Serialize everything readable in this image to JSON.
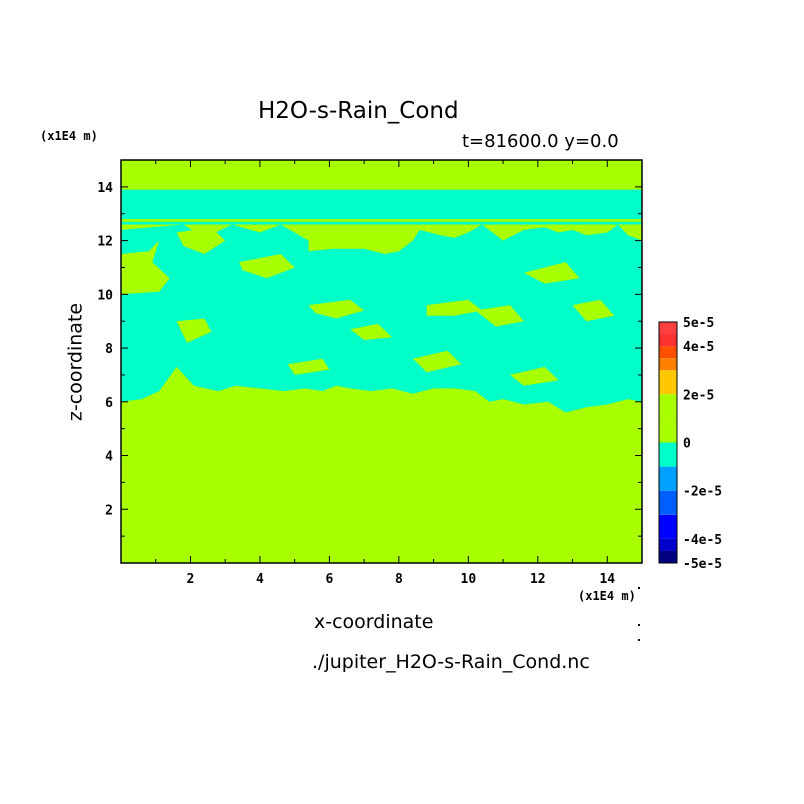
{
  "chart_data": {
    "type": "heatmap",
    "title": "H2O-s-Rain_Cond",
    "subtitle": "t=81600.0 y=0.0",
    "xlabel": "x-coordinate",
    "ylabel": "z-coordinate",
    "x_unit": "(x1E4 m)",
    "y_unit": "(x1E4 m)",
    "xlim": [
      0,
      15
    ],
    "ylim": [
      0,
      15
    ],
    "x_ticks": [
      "2",
      "4",
      "6",
      "8",
      "10",
      "12",
      "14"
    ],
    "y_ticks": [
      "2",
      "4",
      "6",
      "8",
      "10",
      "12",
      "14"
    ],
    "colorbar": {
      "labels": [
        "5e-5",
        "4e-5",
        "2e-5",
        "0",
        "-2e-5",
        "-4e-5",
        "-5e-5"
      ],
      "levels": [
        {
          "from": -5e-05,
          "to": -4.5e-05,
          "color": "#000080"
        },
        {
          "from": -4.5e-05,
          "to": -4e-05,
          "color": "#0000c8"
        },
        {
          "from": -4e-05,
          "to": -3e-05,
          "color": "#0000ff"
        },
        {
          "from": -3e-05,
          "to": -2e-05,
          "color": "#0060ff"
        },
        {
          "from": -2e-05,
          "to": -1e-05,
          "color": "#00a0ff"
        },
        {
          "from": -1e-05,
          "to": 0,
          "color": "#00ffc8"
        },
        {
          "from": 0,
          "to": 1e-05,
          "color": "#a8ff00"
        },
        {
          "from": 1e-05,
          "to": 2e-05,
          "color": "#a8ff00"
        },
        {
          "from": 2e-05,
          "to": 3e-05,
          "color": "#ffc800"
        },
        {
          "from": 3e-05,
          "to": 3.5e-05,
          "color": "#ff8000"
        },
        {
          "from": 3.5e-05,
          "to": 4e-05,
          "color": "#ff5000"
        },
        {
          "from": 4e-05,
          "to": 4.5e-05,
          "color": "#ff3030"
        },
        {
          "from": 4.5e-05,
          "to": 5e-05,
          "color": "#ff4040"
        }
      ]
    },
    "background_color": "#a8ff00",
    "region_color": "#00ffc8",
    "regions": [
      {
        "x": [
          0,
          15,
          15,
          0
        ],
        "y": [
          13.9,
          13.9,
          12.8,
          12.8
        ]
      },
      {
        "x": [
          0,
          15,
          15,
          0
        ],
        "y": [
          12.7,
          12.7,
          12.6,
          12.6
        ]
      },
      {
        "x": [
          0,
          1.8,
          2.4,
          3.2,
          4.0,
          4.6,
          5.4,
          5.4,
          6.1,
          7.0,
          7.6,
          8.0,
          8.4,
          8.6,
          9.2,
          9.6,
          10.0,
          10.4,
          11.0,
          11.6,
          12.2,
          12.6,
          13.0,
          13.4,
          14.0,
          14.3,
          14.6,
          15,
          15,
          14.6,
          14.0,
          13.4,
          12.8,
          12.3,
          11.6,
          11.0,
          10.6,
          10.2,
          9.6,
          9.0,
          8.4,
          7.8,
          7.2,
          6.6,
          6.2,
          5.8,
          5.3,
          4.7,
          4.0,
          3.3,
          2.8,
          2.1,
          1.6,
          1.1,
          0.6,
          0
        ],
        "y": [
          12.4,
          12.6,
          12.1,
          12.6,
          12.3,
          12.6,
          12.0,
          11.6,
          11.7,
          11.7,
          11.5,
          11.6,
          12.0,
          12.4,
          12.2,
          12.1,
          12.3,
          12.6,
          12.0,
          12.4,
          12.5,
          12.3,
          12.4,
          12.2,
          12.3,
          12.6,
          12.2,
          12.0,
          6.0,
          6.1,
          5.9,
          5.8,
          5.6,
          6.0,
          5.9,
          6.1,
          6.0,
          6.4,
          6.5,
          6.5,
          6.3,
          6.5,
          6.4,
          6.5,
          6.6,
          6.4,
          6.5,
          6.4,
          6.5,
          6.6,
          6.4,
          6.6,
          7.3,
          6.4,
          6.1,
          6.0
        ]
      }
    ],
    "holes": [
      {
        "x": [
          0,
          0.8,
          1.1,
          0.9,
          1.4,
          1.1,
          0
        ],
        "y": [
          11.5,
          11.6,
          12.0,
          11.2,
          10.6,
          10.1,
          10.0
        ]
      },
      {
        "x": [
          1.6,
          2.6,
          3.0,
          2.4,
          1.8
        ],
        "y": [
          12.3,
          12.5,
          12.0,
          11.5,
          11.8
        ]
      },
      {
        "x": [
          3.4,
          4.6,
          5.0,
          4.2,
          3.5
        ],
        "y": [
          11.2,
          11.5,
          11.0,
          10.6,
          10.9
        ]
      },
      {
        "x": [
          5.4,
          6.6,
          7.0,
          6.2,
          5.6
        ],
        "y": [
          9.6,
          9.8,
          9.4,
          9.1,
          9.3
        ]
      },
      {
        "x": [
          6.6,
          7.4,
          7.8,
          7.0
        ],
        "y": [
          8.7,
          8.9,
          8.4,
          8.3
        ]
      },
      {
        "x": [
          8.8,
          10.0,
          10.4,
          9.6,
          8.8
        ],
        "y": [
          9.6,
          9.8,
          9.4,
          9.2,
          9.2
        ]
      },
      {
        "x": [
          10.2,
          11.2,
          11.6,
          10.8
        ],
        "y": [
          9.4,
          9.6,
          9.0,
          8.8
        ]
      },
      {
        "x": [
          11.6,
          12.8,
          13.2,
          12.2
        ],
        "y": [
          10.8,
          11.2,
          10.6,
          10.4
        ]
      },
      {
        "x": [
          13.0,
          13.8,
          14.2,
          13.4
        ],
        "y": [
          9.6,
          9.8,
          9.2,
          9.0
        ]
      },
      {
        "x": [
          1.6,
          2.4,
          2.6,
          1.9
        ],
        "y": [
          9.0,
          9.1,
          8.6,
          8.2
        ]
      },
      {
        "x": [
          4.8,
          5.8,
          6.0,
          5.0
        ],
        "y": [
          7.4,
          7.6,
          7.2,
          7.0
        ]
      },
      {
        "x": [
          8.4,
          9.4,
          9.8,
          8.8
        ],
        "y": [
          7.6,
          7.9,
          7.4,
          7.1
        ]
      },
      {
        "x": [
          11.2,
          12.2,
          12.6,
          11.6
        ],
        "y": [
          7.0,
          7.3,
          6.8,
          6.6
        ]
      }
    ]
  }
}
